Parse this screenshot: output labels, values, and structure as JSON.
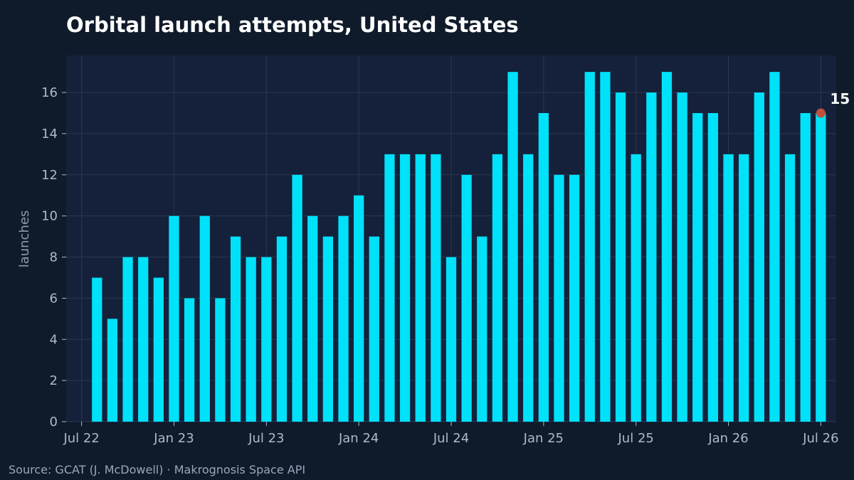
{
  "chart_data": {
    "type": "bar",
    "title": "Orbital launch attempts, United States",
    "ylabel": "launches",
    "xlabel": "",
    "ylim": [
      0,
      17.8
    ],
    "yticks": [
      0,
      2,
      4,
      6,
      8,
      10,
      12,
      14,
      16
    ],
    "x_range": [
      "2022-06",
      "2026-08"
    ],
    "xticks": [
      {
        "date": "2022-07",
        "label": "Jul 22"
      },
      {
        "date": "2023-01",
        "label": "Jan 23"
      },
      {
        "date": "2023-07",
        "label": "Jul 23"
      },
      {
        "date": "2024-01",
        "label": "Jan 24"
      },
      {
        "date": "2024-07",
        "label": "Jul 24"
      },
      {
        "date": "2025-01",
        "label": "Jan 25"
      },
      {
        "date": "2025-07",
        "label": "Jul 25"
      },
      {
        "date": "2026-01",
        "label": "Jan 26"
      },
      {
        "date": "2026-07",
        "label": "Jul 26"
      }
    ],
    "months": [
      "2022-08",
      "2022-09",
      "2022-10",
      "2022-11",
      "2022-12",
      "2023-01",
      "2023-02",
      "2023-03",
      "2023-04",
      "2023-05",
      "2023-06",
      "2023-07",
      "2023-08",
      "2023-09",
      "2023-10",
      "2023-11",
      "2023-12",
      "2024-01",
      "2024-02",
      "2024-03",
      "2024-04",
      "2024-05",
      "2024-06",
      "2024-07",
      "2024-08",
      "2024-09",
      "2024-10",
      "2024-11",
      "2024-12",
      "2025-01",
      "2025-02",
      "2025-03",
      "2025-04",
      "2025-05",
      "2025-06",
      "2025-07",
      "2025-08",
      "2025-09",
      "2025-10",
      "2025-11",
      "2025-12",
      "2026-01",
      "2026-02",
      "2026-03",
      "2026-04",
      "2026-05",
      "2026-06",
      "2026-07"
    ],
    "values": [
      7,
      5,
      8,
      8,
      7,
      10,
      6,
      10,
      6,
      9,
      8,
      8,
      9,
      12,
      10,
      9,
      10,
      11,
      9,
      13,
      13,
      13,
      13,
      8,
      12,
      9,
      13,
      17,
      13,
      15,
      12,
      12,
      17,
      17,
      16,
      13,
      16,
      17,
      16,
      15,
      15,
      13,
      13,
      16,
      17,
      13,
      15,
      15
    ],
    "latest": {
      "date": "2026-07",
      "value": 15,
      "label": "15"
    },
    "grid": true,
    "colors": {
      "background": "#0f1b2b",
      "plot_background": "#15213a",
      "bar": "#00e1fa",
      "marker": "#c0503e",
      "grid": "#2a3750"
    }
  },
  "footer": {
    "source": "Source: GCAT (J. McDowell) · Makrognosis Space API"
  }
}
